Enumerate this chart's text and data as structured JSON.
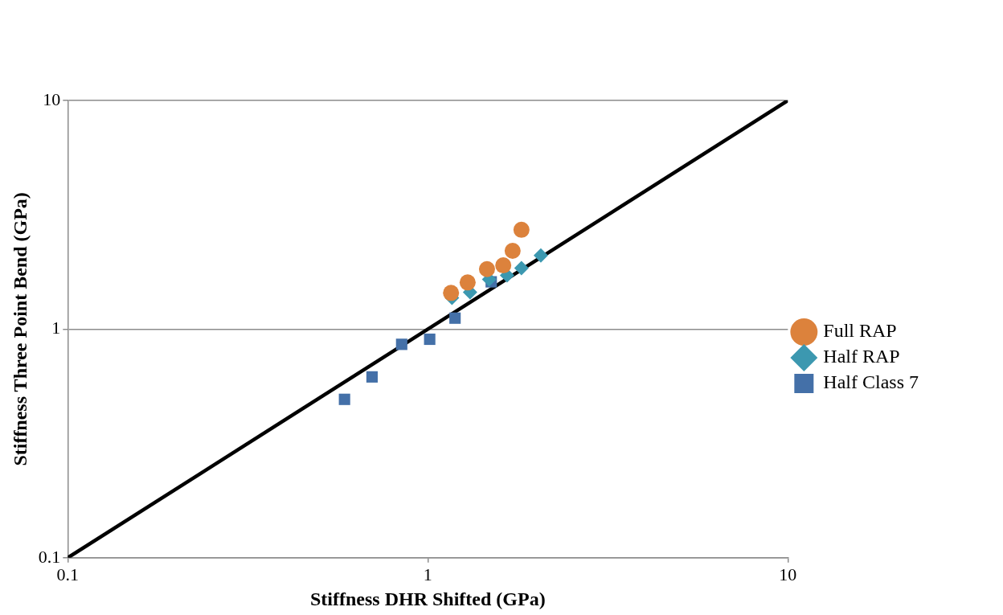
{
  "chart_data": {
    "type": "scatter",
    "xlabel": "Stiffness DHR Shifted (GPa)",
    "ylabel": "Stiffness Three Point Bend (GPa)",
    "log": "xy",
    "xlim": [
      0.1,
      10
    ],
    "ylim": [
      0.1,
      10
    ],
    "xticks": [
      0.1,
      1,
      10
    ],
    "yticks": [
      0.1,
      1,
      10
    ],
    "grid": "y",
    "legend": "right",
    "series": [
      {
        "name": "Half Class 7",
        "color": "#4470a8",
        "marker": "square",
        "x": [
          0.587,
          0.7,
          0.846,
          1.012,
          1.19,
          1.5
        ],
        "values": [
          0.493,
          0.618,
          0.858,
          0.903,
          1.117,
          1.61
        ]
      },
      {
        "name": "Half RAP",
        "color": "#3c98b0",
        "marker": "diamond",
        "x": [
          1.167,
          1.31,
          1.48,
          1.66,
          1.82,
          2.06
        ],
        "values": [
          1.37,
          1.45,
          1.65,
          1.72,
          1.85,
          2.1
        ]
      },
      {
        "name": "Full RAP",
        "color": "#dc823c",
        "marker": "circle",
        "x": [
          1.16,
          1.29,
          1.46,
          1.62,
          1.72,
          1.82
        ],
        "values": [
          1.44,
          1.6,
          1.83,
          1.9,
          2.2,
          2.72
        ]
      },
      {
        "type": "line",
        "color": "#000000",
        "marker": "none",
        "line_style": "solid",
        "x": [
          0.1,
          10
        ],
        "values": [
          0.1,
          10
        ]
      }
    ]
  }
}
